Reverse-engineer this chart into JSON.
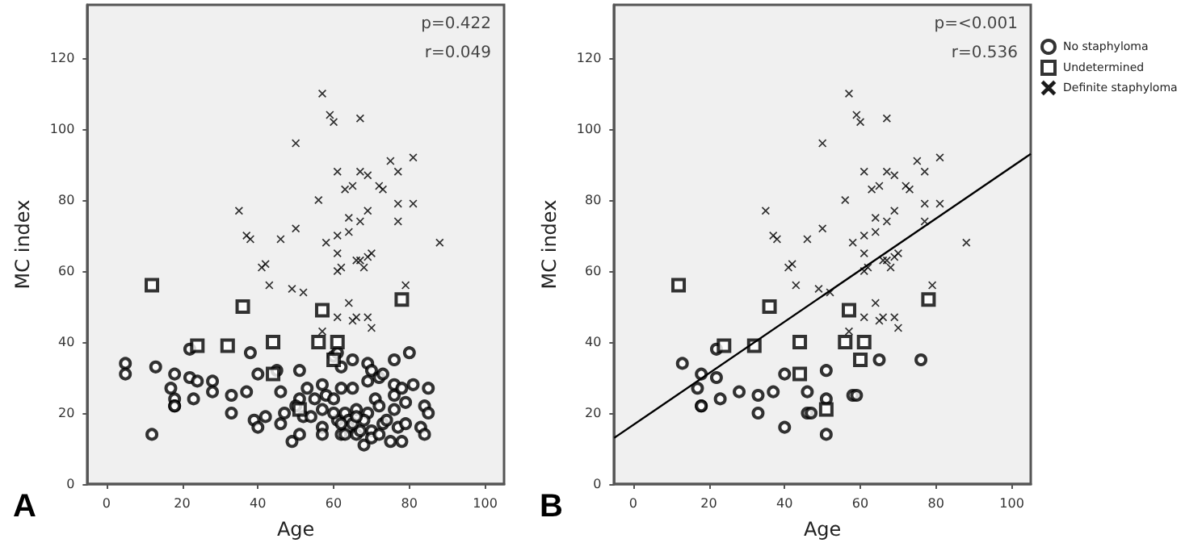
{
  "chart_data": [
    {
      "type": "scatter",
      "xlabel": "Age",
      "ylabel": "MC index",
      "annotations": [
        "p=0.422",
        "r=0.049",
        "A"
      ],
      "xlim": [
        -5,
        105
      ],
      "xticks": [
        0,
        20,
        40,
        60,
        80,
        100
      ],
      "ylim": [
        0,
        135
      ],
      "yticks": [
        0,
        20,
        40,
        60,
        80,
        100,
        120
      ],
      "grid": false,
      "series": [
        {
          "marker": "circle",
          "color": "#000000",
          "x": [
            5,
            5,
            13,
            12,
            17,
            18,
            18,
            18,
            18,
            22,
            22,
            23,
            24,
            28,
            28,
            33,
            33,
            37,
            38,
            40,
            39,
            40,
            45,
            42,
            46,
            46,
            47,
            49,
            51,
            51,
            51,
            50,
            53,
            52,
            54,
            55,
            57,
            57,
            58,
            57,
            57,
            60,
            61,
            62,
            60,
            62,
            61,
            62,
            63,
            64,
            64,
            65,
            65,
            66,
            66,
            67,
            68,
            69,
            69,
            70,
            70,
            71,
            72,
            73,
            72,
            73,
            74,
            75,
            76,
            76,
            76,
            76,
            77,
            78,
            79,
            79,
            80,
            81,
            83,
            84,
            84,
            85,
            85,
            78,
            69,
            63,
            65,
            68,
            70,
            72,
            62,
            66,
            60
          ],
          "values": [
            34,
            31,
            33,
            14,
            27,
            31,
            24,
            22,
            22,
            38,
            30,
            24,
            29,
            29,
            26,
            25,
            20,
            26,
            37,
            31,
            18,
            16,
            32,
            19,
            26,
            17,
            20,
            12,
            32,
            24,
            14,
            22,
            27,
            19,
            19,
            24,
            28,
            21,
            25,
            16,
            14,
            36,
            37,
            33,
            24,
            27,
            18,
            14,
            20,
            18,
            16,
            35,
            27,
            21,
            14,
            15,
            11,
            34,
            29,
            32,
            15,
            24,
            30,
            31,
            22,
            17,
            18,
            12,
            35,
            28,
            25,
            21,
            16,
            27,
            23,
            17,
            37,
            28,
            16,
            22,
            14,
            27,
            20,
            12,
            20,
            14,
            17,
            18,
            13,
            14,
            17,
            19,
            20
          ]
        },
        {
          "marker": "square",
          "color": "#000000",
          "x": [
            12,
            36,
            57,
            78,
            24,
            32,
            44,
            56,
            61,
            60,
            44,
            51
          ],
          "values": [
            56,
            50,
            49,
            52,
            39,
            39,
            40,
            40,
            40,
            35,
            31,
            21
          ]
        },
        {
          "marker": "cross",
          "color": "#000000",
          "x": [
            57,
            59,
            60,
            67,
            50,
            75,
            81,
            61,
            67,
            69,
            77,
            63,
            65,
            72,
            73,
            56,
            77,
            81,
            35,
            69,
            64,
            50,
            67,
            77,
            37,
            38,
            46,
            61,
            64,
            58,
            88,
            61,
            66,
            67,
            69,
            70,
            41,
            42,
            61,
            62,
            68,
            43,
            49,
            52,
            79,
            64,
            61,
            66,
            65,
            69,
            70,
            57
          ],
          "values": [
            110,
            104,
            102,
            103,
            96,
            91,
            92,
            88,
            88,
            87,
            88,
            83,
            84,
            84,
            83,
            80,
            79,
            79,
            77,
            77,
            75,
            72,
            74,
            74,
            70,
            69,
            69,
            70,
            71,
            68,
            68,
            65,
            63,
            63,
            64,
            65,
            61,
            62,
            60,
            61,
            61,
            56,
            55,
            54,
            56,
            51,
            47,
            47,
            46,
            47,
            44,
            43
          ]
        }
      ]
    },
    {
      "type": "scatter",
      "xlabel": "Age",
      "ylabel": "MC index",
      "annotations": [
        "p=<0.001",
        "r=0.536",
        "B"
      ],
      "xlim": [
        -5,
        105
      ],
      "xticks": [
        0,
        20,
        40,
        60,
        80,
        100
      ],
      "ylim": [
        0,
        135
      ],
      "yticks": [
        0,
        20,
        40,
        60,
        80,
        100,
        120
      ],
      "grid": false,
      "legend": "right",
      "series": [
        {
          "name": "No staphyloma",
          "marker": "circle",
          "color": "#000000",
          "x": [
            13,
            22,
            18,
            22,
            17,
            28,
            23,
            18,
            18,
            33,
            33,
            37,
            40,
            40,
            46,
            46,
            47,
            51,
            51,
            51,
            58,
            59,
            65,
            76
          ],
          "values": [
            34,
            38,
            31,
            30,
            27,
            26,
            24,
            22,
            22,
            25,
            20,
            26,
            31,
            16,
            26,
            20,
            20,
            32,
            24,
            14,
            25,
            25,
            35,
            35
          ]
        },
        {
          "name": "Undetermined",
          "marker": "square",
          "color": "#000000",
          "x": [
            12,
            36,
            57,
            78,
            24,
            32,
            44,
            56,
            61,
            60,
            44,
            51
          ],
          "values": [
            56,
            50,
            49,
            52,
            39,
            39,
            40,
            40,
            40,
            35,
            31,
            21
          ]
        },
        {
          "name": "Definite staphyloma",
          "marker": "cross",
          "color": "#000000",
          "x": [
            57,
            59,
            60,
            67,
            50,
            75,
            81,
            61,
            67,
            69,
            77,
            63,
            65,
            72,
            73,
            56,
            77,
            81,
            35,
            69,
            64,
            50,
            67,
            77,
            37,
            38,
            46,
            61,
            64,
            58,
            88,
            61,
            66,
            67,
            69,
            70,
            41,
            42,
            61,
            62,
            68,
            43,
            49,
            52,
            79,
            64,
            61,
            66,
            65,
            69,
            70,
            57
          ],
          "values": [
            110,
            104,
            102,
            103,
            96,
            91,
            92,
            88,
            88,
            87,
            88,
            83,
            84,
            84,
            83,
            80,
            79,
            79,
            77,
            77,
            75,
            72,
            74,
            74,
            70,
            69,
            69,
            70,
            71,
            68,
            68,
            65,
            63,
            63,
            64,
            65,
            61,
            62,
            60,
            61,
            61,
            56,
            55,
            54,
            56,
            51,
            47,
            47,
            46,
            47,
            44,
            43
          ]
        },
        {
          "type": "line",
          "marker": "none",
          "color": "#000000",
          "x": [
            -5,
            105
          ],
          "values": [
            13,
            93
          ]
        }
      ]
    }
  ]
}
